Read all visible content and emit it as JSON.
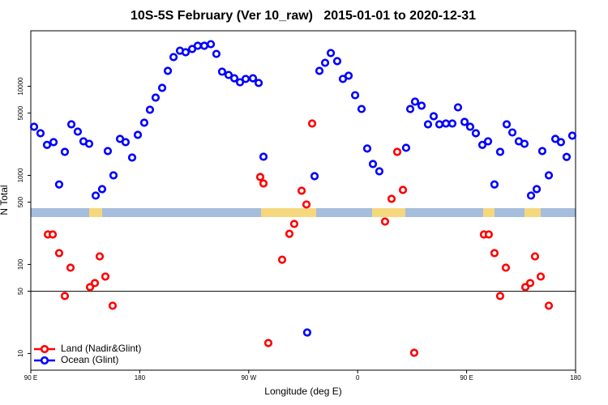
{
  "chart_data": {
    "type": "scatter",
    "title": "10S-5S February (Ver 10_raw)   2015-01-01 to 2020-12-31",
    "xlabel": "Longitude (deg E)",
    "ylabel": "N Total",
    "xlim": [
      90,
      540
    ],
    "xticks": [
      {
        "value": 90,
        "label": "90 E"
      },
      180,
      {
        "value": 270,
        "label": "90 W"
      },
      {
        "value": 360,
        "label": "0"
      },
      {
        "value": 450,
        "label": "90 E"
      },
      {
        "value": 540,
        "label": "180"
      }
    ],
    "ylim": [
      6.5,
      42000
    ],
    "yticks": [
      10,
      50,
      100,
      500,
      1000,
      5000,
      10000
    ],
    "log_y": true,
    "hline": 50,
    "legend": "bottomleft",
    "series": [
      {
        "name": "Land (Nadir&Glint)",
        "color": "#ff0000",
        "x": [
          104.1,
          108.1,
          113.4,
          118.1,
          122.8,
          138.9,
          142.9,
          146.9,
          151.6,
          157.6,
          279.5,
          282.2,
          286.2,
          297.6,
          303.6,
          307.6,
          313.7,
          317.7,
          322.4,
          382.6,
          388.0,
          392.7,
          397.4,
          406.7,
          464.3,
          468.3,
          473.0,
          477.7,
          482.4,
          498.5,
          502.5,
          506.5,
          511.2,
          517.9
        ],
        "values": [
          217,
          217,
          134,
          44.2,
          92,
          55.6,
          61.8,
          123,
          73.1,
          34.4,
          959,
          811,
          13.1,
          113,
          221,
          285,
          672,
          471,
          3820,
          303,
          545,
          1835,
          686,
          10.2,
          217,
          217,
          134,
          44.2,
          92,
          55.6,
          61.8,
          123,
          73.1,
          34.4
        ]
      },
      {
        "name": "Ocean (Glint)",
        "color": "#0000ff",
        "x": [
          92.7,
          98.0,
          103.4,
          108.8,
          113.4,
          118.1,
          123.5,
          128.8,
          133.5,
          138.2,
          143.6,
          148.9,
          153.6,
          158.3,
          163.7,
          168.3,
          173.7,
          178.4,
          183.7,
          188.4,
          193.1,
          198.5,
          203.2,
          207.9,
          213.2,
          217.9,
          223.3,
          227.9,
          233.3,
          238.7,
          243.3,
          248.0,
          253.4,
          258.1,
          262.8,
          267.5,
          273.5,
          278.2,
          282.2,
          318.3,
          324.4,
          328.4,
          333.1,
          337.8,
          343.1,
          347.8,
          352.5,
          357.9,
          363.2,
          367.9,
          372.6,
          377.9,
          400.0,
          403.4,
          407.4,
          412.8,
          418.1,
          422.8,
          427.5,
          432.9,
          438.2,
          442.9,
          448.3,
          452.9,
          457.6,
          463.0,
          467.7,
          473.0,
          477.7,
          483.1,
          487.8,
          493.1,
          497.8,
          503.2,
          507.9,
          512.5,
          517.9,
          523.3,
          527.9,
          532.6,
          537.3
        ],
        "values": [
          3510,
          2970,
          2200,
          2360,
          790,
          1835,
          3740,
          3100,
          2410,
          2260,
          593,
          700,
          1875,
          1000,
          2565,
          2360,
          1585,
          2850,
          3900,
          5450,
          7460,
          9590,
          14900,
          21250,
          25100,
          24100,
          26200,
          28500,
          28500,
          29700,
          23100,
          14600,
          13400,
          12300,
          11100,
          12100,
          12300,
          10900,
          1620,
          17.2,
          980,
          14900,
          18350,
          23600,
          19140,
          12100,
          13130,
          7940,
          5560,
          2000,
          1340,
          1110,
          2040,
          5560,
          6720,
          6050,
          3740,
          4610,
          3740,
          3820,
          3820,
          5800,
          3980,
          3510,
          2970,
          2200,
          2410,
          790,
          1835,
          3740,
          3030,
          2410,
          2260,
          593,
          700,
          1875,
          1000,
          2565,
          2360,
          1610,
          2790
        ]
      }
    ]
  }
}
